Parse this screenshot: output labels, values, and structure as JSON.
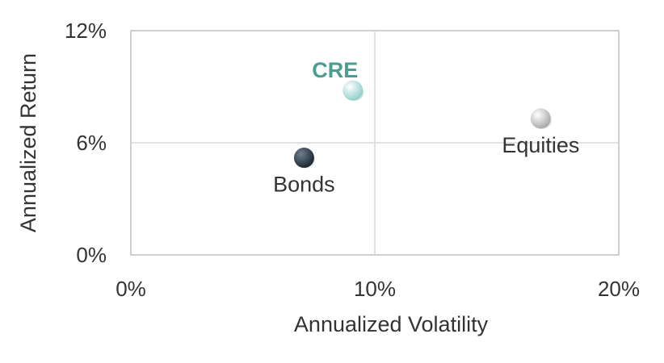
{
  "chart_data": {
    "type": "scatter",
    "xlabel": "Annualized Volatility",
    "ylabel": "Annualized Return",
    "xlim": [
      0,
      20
    ],
    "ylim": [
      0,
      12
    ],
    "x_ticks": [
      0,
      10,
      20
    ],
    "y_ticks": [
      0,
      6,
      12
    ],
    "x_tick_labels": [
      "0%",
      "10%",
      "20%"
    ],
    "y_tick_labels": [
      "0%",
      "6%",
      "12%"
    ],
    "grid": true,
    "points": [
      {
        "label": "CRE",
        "x": 9.1,
        "y": 8.8,
        "color": "#8fcfca",
        "label_color": "#4a9e90",
        "label_bold": true,
        "label_position": "above-left"
      },
      {
        "label": "Equities",
        "x": 16.8,
        "y": 7.3,
        "color": "#c8c8c8",
        "label_color": "#333333",
        "label_bold": false,
        "label_position": "below"
      },
      {
        "label": "Bonds",
        "x": 7.1,
        "y": 5.2,
        "color": "#26343f",
        "label_color": "#333333",
        "label_bold": false,
        "label_position": "below"
      }
    ]
  }
}
